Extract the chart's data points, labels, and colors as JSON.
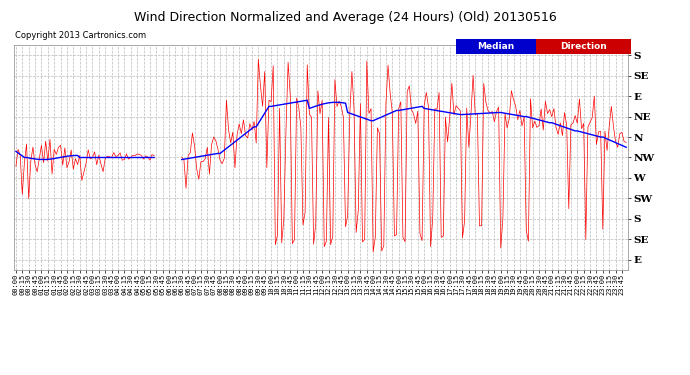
{
  "title": "Wind Direction Normalized and Average (24 Hours) (Old) 20130516",
  "copyright": "Copyright 2013 Cartronics.com",
  "legend_labels": [
    "Median",
    "Direction"
  ],
  "legend_bg_colors": [
    "#0000cc",
    "#cc0000"
  ],
  "ytick_labels_right": [
    "S",
    "SE",
    "E",
    "NE",
    "N",
    "NW",
    "W",
    "SW",
    "S",
    "SE",
    "E"
  ],
  "ytick_values": [
    10,
    9,
    8,
    7,
    6,
    5,
    4,
    3,
    2,
    1,
    0
  ],
  "ymin": -0.5,
  "ymax": 10.5,
  "background_color": "#ffffff",
  "grid_color": "#bbbbbb",
  "red_color": "#ff0000",
  "blue_color": "#0000ff",
  "figwidth": 6.9,
  "figheight": 3.75,
  "dpi": 100
}
